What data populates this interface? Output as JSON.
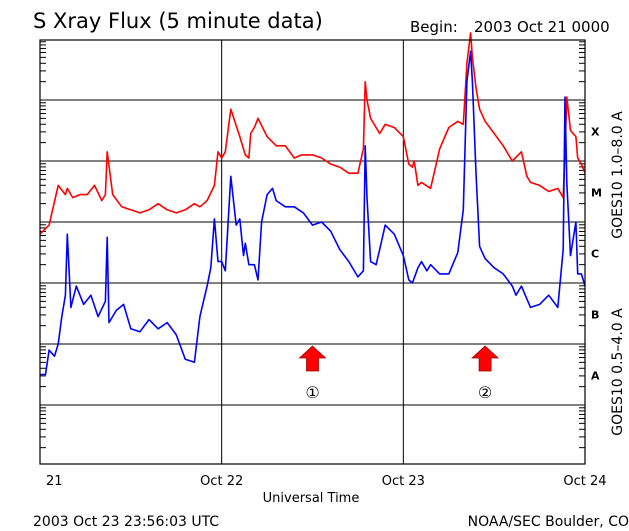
{
  "chart_data": {
    "type": "line",
    "title": "S Xray Flux (5 minute data)",
    "begin_label": "Begin:",
    "begin_value": "2003 Oct 21 0000",
    "xlabel": "Universal Time",
    "x_ticks": [
      "21",
      "Oct 22",
      "Oct 23",
      "Oct 24"
    ],
    "x_range_days": [
      0,
      3
    ],
    "y_scale": "log",
    "class_labels": [
      "X",
      "M",
      "C",
      "B",
      "A"
    ],
    "right_labels": {
      "long": "GOES10 1.0–8.0 A",
      "short": "GOES10 0.5–4.0 A"
    },
    "colors": {
      "long": "#ff0000",
      "short": "#0000ff",
      "long_label": "#8b2be2",
      "short_label": "#ffa500",
      "marker": "#ff0000"
    },
    "markers": [
      {
        "label": "①",
        "day": 1.5
      },
      {
        "label": "②",
        "day": 2.45
      }
    ],
    "series": [
      {
        "key": "long",
        "t": [
          0.0,
          0.05,
          0.1,
          0.14,
          0.15,
          0.18,
          0.22,
          0.26,
          0.3,
          0.34,
          0.36,
          0.37,
          0.4,
          0.45,
          0.5,
          0.55,
          0.6,
          0.65,
          0.7,
          0.75,
          0.8,
          0.85,
          0.88,
          0.92,
          0.96,
          0.98,
          1.0,
          1.02,
          1.05,
          1.1,
          1.13,
          1.15,
          1.16,
          1.18,
          1.2,
          1.25,
          1.3,
          1.35,
          1.4,
          1.44,
          1.5,
          1.55,
          1.6,
          1.65,
          1.7,
          1.75,
          1.78,
          1.79,
          1.8,
          1.82,
          1.85,
          1.87,
          1.9,
          1.95,
          2.0,
          2.03,
          2.05,
          2.06,
          2.08,
          2.1,
          2.15,
          2.2,
          2.25,
          2.3,
          2.33,
          2.35,
          2.37,
          2.38,
          2.4,
          2.42,
          2.45,
          2.5,
          2.55,
          2.6,
          2.65,
          2.68,
          2.7,
          2.75,
          2.8,
          2.85,
          2.88,
          2.89,
          2.9,
          2.92,
          2.95,
          2.96,
          2.98,
          3.0
        ],
        "v": [
          0.8,
          0.95,
          1.6,
          1.45,
          1.55,
          1.4,
          1.45,
          1.45,
          1.6,
          1.35,
          1.45,
          2.15,
          1.45,
          1.25,
          1.2,
          1.15,
          1.2,
          1.3,
          1.2,
          1.15,
          1.2,
          1.3,
          1.25,
          1.35,
          1.6,
          2.15,
          2.05,
          2.15,
          2.85,
          2.4,
          2.1,
          2.05,
          2.45,
          2.55,
          2.7,
          2.4,
          2.25,
          2.25,
          2.05,
          2.1,
          2.1,
          2.05,
          1.95,
          1.9,
          1.8,
          1.8,
          2.2,
          3.3,
          3.0,
          2.7,
          2.55,
          2.45,
          2.6,
          2.55,
          2.4,
          1.95,
          1.9,
          2.0,
          1.6,
          1.65,
          1.55,
          2.2,
          2.55,
          2.65,
          2.6,
          3.6,
          4.1,
          3.7,
          3.2,
          2.85,
          2.65,
          2.45,
          2.25,
          2.0,
          2.15,
          1.75,
          1.65,
          1.6,
          1.5,
          1.55,
          1.4,
          2.15,
          3.05,
          2.5,
          2.4,
          2.05,
          1.95,
          1.8
        ]
      },
      {
        "key": "short",
        "t": [
          0.0,
          0.03,
          0.05,
          0.08,
          0.1,
          0.12,
          0.14,
          0.15,
          0.17,
          0.2,
          0.24,
          0.28,
          0.32,
          0.36,
          0.37,
          0.38,
          0.42,
          0.46,
          0.5,
          0.55,
          0.6,
          0.65,
          0.7,
          0.75,
          0.8,
          0.85,
          0.88,
          0.92,
          0.94,
          0.96,
          0.98,
          1.0,
          1.02,
          1.05,
          1.08,
          1.1,
          1.12,
          1.13,
          1.15,
          1.18,
          1.2,
          1.22,
          1.25,
          1.28,
          1.3,
          1.35,
          1.4,
          1.45,
          1.5,
          1.55,
          1.6,
          1.65,
          1.7,
          1.75,
          1.78,
          1.79,
          1.8,
          1.82,
          1.85,
          1.87,
          1.9,
          1.95,
          2.0,
          2.03,
          2.05,
          2.08,
          2.1,
          2.13,
          2.15,
          2.2,
          2.25,
          2.3,
          2.33,
          2.35,
          2.37,
          2.38,
          2.4,
          2.42,
          2.45,
          2.5,
          2.55,
          2.6,
          2.62,
          2.65,
          2.7,
          2.75,
          2.8,
          2.85,
          2.88,
          2.89,
          2.9,
          2.92,
          2.95,
          2.96,
          2.98,
          3.0
        ],
        "v": [
          -1.5,
          -1.5,
          -1.1,
          -1.2,
          -1.0,
          -0.55,
          -0.2,
          0.8,
          -0.4,
          -0.05,
          -0.35,
          -0.2,
          -0.55,
          -0.3,
          0.75,
          -0.65,
          -0.45,
          -0.35,
          -0.75,
          -0.8,
          -0.6,
          -0.75,
          -0.65,
          -0.85,
          -1.25,
          -1.3,
          -0.55,
          -0.05,
          0.25,
          1.05,
          0.35,
          0.35,
          0.2,
          1.75,
          0.95,
          1.05,
          0.45,
          0.65,
          0.3,
          0.3,
          0.05,
          1.0,
          1.45,
          1.55,
          1.35,
          1.25,
          1.25,
          1.15,
          0.95,
          1.0,
          0.85,
          0.55,
          0.35,
          0.1,
          0.2,
          2.25,
          1.4,
          0.35,
          0.3,
          0.55,
          0.95,
          0.8,
          0.45,
          0.05,
          0.0,
          0.25,
          0.35,
          0.2,
          0.3,
          0.15,
          0.15,
          0.5,
          1.2,
          3.3,
          3.8,
          3.3,
          1.8,
          0.6,
          0.4,
          0.25,
          0.15,
          -0.05,
          -0.2,
          -0.05,
          -0.4,
          -0.35,
          -0.2,
          -0.4,
          0.55,
          3.05,
          1.65,
          0.45,
          1.0,
          0.15,
          0.15,
          -0.05
        ]
      }
    ]
  },
  "footer": {
    "timestamp": "2003 Oct 23 23:56:03 UTC",
    "credit": "NOAA/SEC Boulder, CO"
  }
}
